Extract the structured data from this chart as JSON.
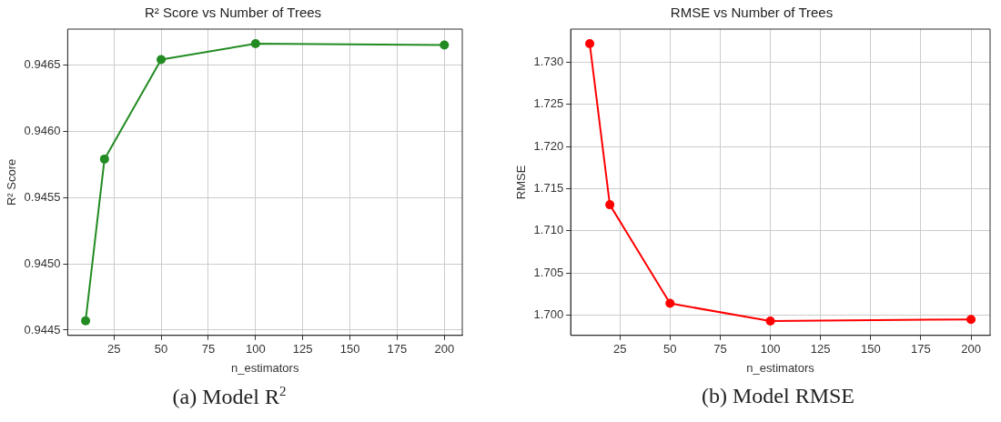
{
  "chart_data": [
    {
      "type": "line",
      "title": "R² Score vs Number of Trees",
      "xlabel": "n_estimators",
      "ylabel": "R² Score",
      "x": [
        10,
        20,
        50,
        100,
        200
      ],
      "series": [
        {
          "color": "#228b22",
          "values": [
            0.94457,
            0.94579,
            0.94654,
            0.94666,
            0.94665
          ]
        }
      ],
      "xlim": [
        0.5,
        209.5
      ],
      "xticks": [
        25,
        50,
        75,
        100,
        125,
        150,
        175,
        200
      ],
      "ylim": [
        0.94446,
        0.94677
      ],
      "yticks": [
        {
          "value": 0.9445,
          "label": "0.9445"
        },
        {
          "value": 0.946,
          "label": "0.9460"
        },
        {
          "value": 0.9455,
          "label": "0.9455"
        },
        {
          "value": 0.945,
          "label": "0.9450"
        },
        {
          "value": 0.9465,
          "label": "0.9465"
        }
      ],
      "grid": true,
      "marker": "circle",
      "line_style": "solid",
      "annotations": [
        "(a) Model R$^{2}$"
      ]
    },
    {
      "type": "line",
      "title": "RMSE vs Number of Trees",
      "xlabel": "n_estimators",
      "ylabel": "RMSE",
      "x": [
        10,
        20,
        50,
        100,
        200
      ],
      "series": [
        {
          "color": "#ff0000",
          "values": [
            1.7322,
            1.7131,
            1.7014,
            1.6993,
            1.6995
          ]
        }
      ],
      "xlim": [
        0.5,
        209.5
      ],
      "xticks": [
        25,
        50,
        75,
        100,
        125,
        150,
        175,
        200
      ],
      "ylim": [
        1.6976,
        1.73393
      ],
      "yticks": [
        {
          "value": 1.7,
          "label": "1.700"
        },
        {
          "value": 1.705,
          "label": "1.705"
        },
        {
          "value": 1.71,
          "label": "1.710"
        },
        {
          "value": 1.715,
          "label": "1.715"
        },
        {
          "value": 1.72,
          "label": "1.720"
        },
        {
          "value": 1.725,
          "label": "1.725"
        },
        {
          "value": 1.73,
          "label": "1.730"
        }
      ],
      "grid": true,
      "marker": "circle",
      "line_style": "solid",
      "annotations": [
        "(b) Model RMSE"
      ]
    }
  ]
}
